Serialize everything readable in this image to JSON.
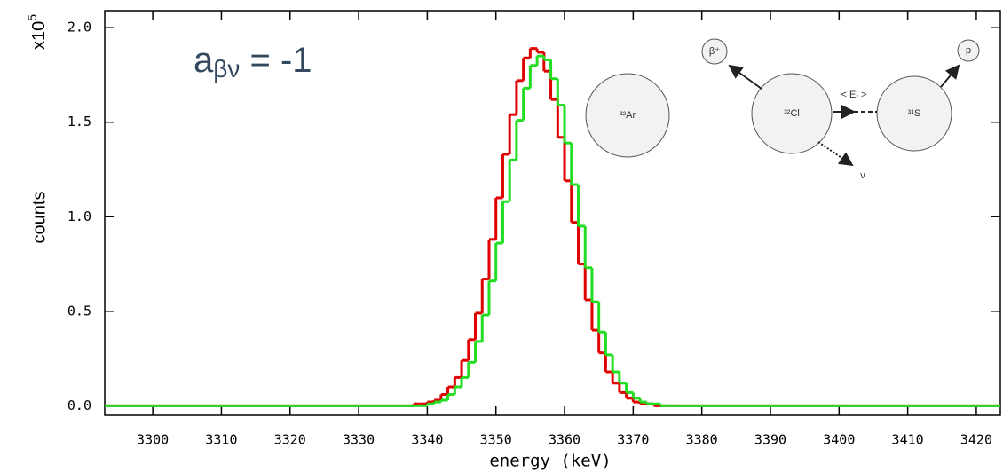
{
  "chart_data": {
    "type": "histogram",
    "xlabel": "energy (keV)",
    "ylabel": "counts",
    "y_multiplier": {
      "base": "x10",
      "exponent": "5"
    },
    "annotation": {
      "base": "a",
      "subscript": "βν",
      "rest": " = -1"
    },
    "xlim": [
      3293,
      3423.5
    ],
    "ylim": [
      -0.05,
      2.09
    ],
    "xticks": [
      3300,
      3310,
      3320,
      3330,
      3340,
      3350,
      3360,
      3370,
      3380,
      3390,
      3400,
      3410,
      3420
    ],
    "yticks": [
      {
        "value": 0,
        "label": "0.0"
      },
      0.5,
      {
        "value": 1,
        "label": "1.0"
      },
      1.5,
      {
        "value": 2,
        "label": "2.0"
      }
    ],
    "bins": [
      3293,
      3338,
      3339,
      3340,
      3341,
      3342,
      3343,
      3344,
      3345,
      3346,
      3347,
      3348,
      3349,
      3350,
      3351,
      3352,
      3353,
      3354,
      3355,
      3356,
      3357,
      3358,
      3359,
      3360,
      3361,
      3362,
      3363,
      3364,
      3365,
      3366,
      3367,
      3368,
      3369,
      3370,
      3371,
      3372,
      3373,
      3374,
      3375,
      3376,
      3423.5
    ],
    "series": [
      {
        "color": "#e00000",
        "values": [
          0,
          0.01,
          0.01,
          0.02,
          0.03,
          0.06,
          0.1,
          0.15,
          0.24,
          0.35,
          0.49,
          0.67,
          0.88,
          1.1,
          1.33,
          1.54,
          1.72,
          1.84,
          1.89,
          1.87,
          1.77,
          1.62,
          1.42,
          1.19,
          0.97,
          0.75,
          0.56,
          0.4,
          0.28,
          0.18,
          0.12,
          0.07,
          0.04,
          0.02,
          0.01,
          0.01,
          0,
          0,
          0,
          0
        ]
      },
      {
        "color": "#22dd22",
        "values": [
          0,
          0,
          0,
          0.01,
          0.02,
          0.03,
          0.06,
          0.1,
          0.15,
          0.23,
          0.34,
          0.48,
          0.66,
          0.86,
          1.08,
          1.3,
          1.51,
          1.68,
          1.8,
          1.85,
          1.83,
          1.73,
          1.59,
          1.39,
          1.17,
          0.95,
          0.73,
          0.55,
          0.39,
          0.27,
          0.18,
          0.12,
          0.07,
          0.04,
          0.02,
          0.01,
          0.01,
          0,
          0,
          0
        ]
      }
    ]
  },
  "diagram": {
    "nodes": [
      "³²Ar",
      "³²Cl",
      "³¹S",
      "β⁺",
      "p"
    ],
    "neutrino": "ν",
    "recoil": {
      "open": "< E",
      "subscript": "r",
      "close": " >"
    }
  }
}
